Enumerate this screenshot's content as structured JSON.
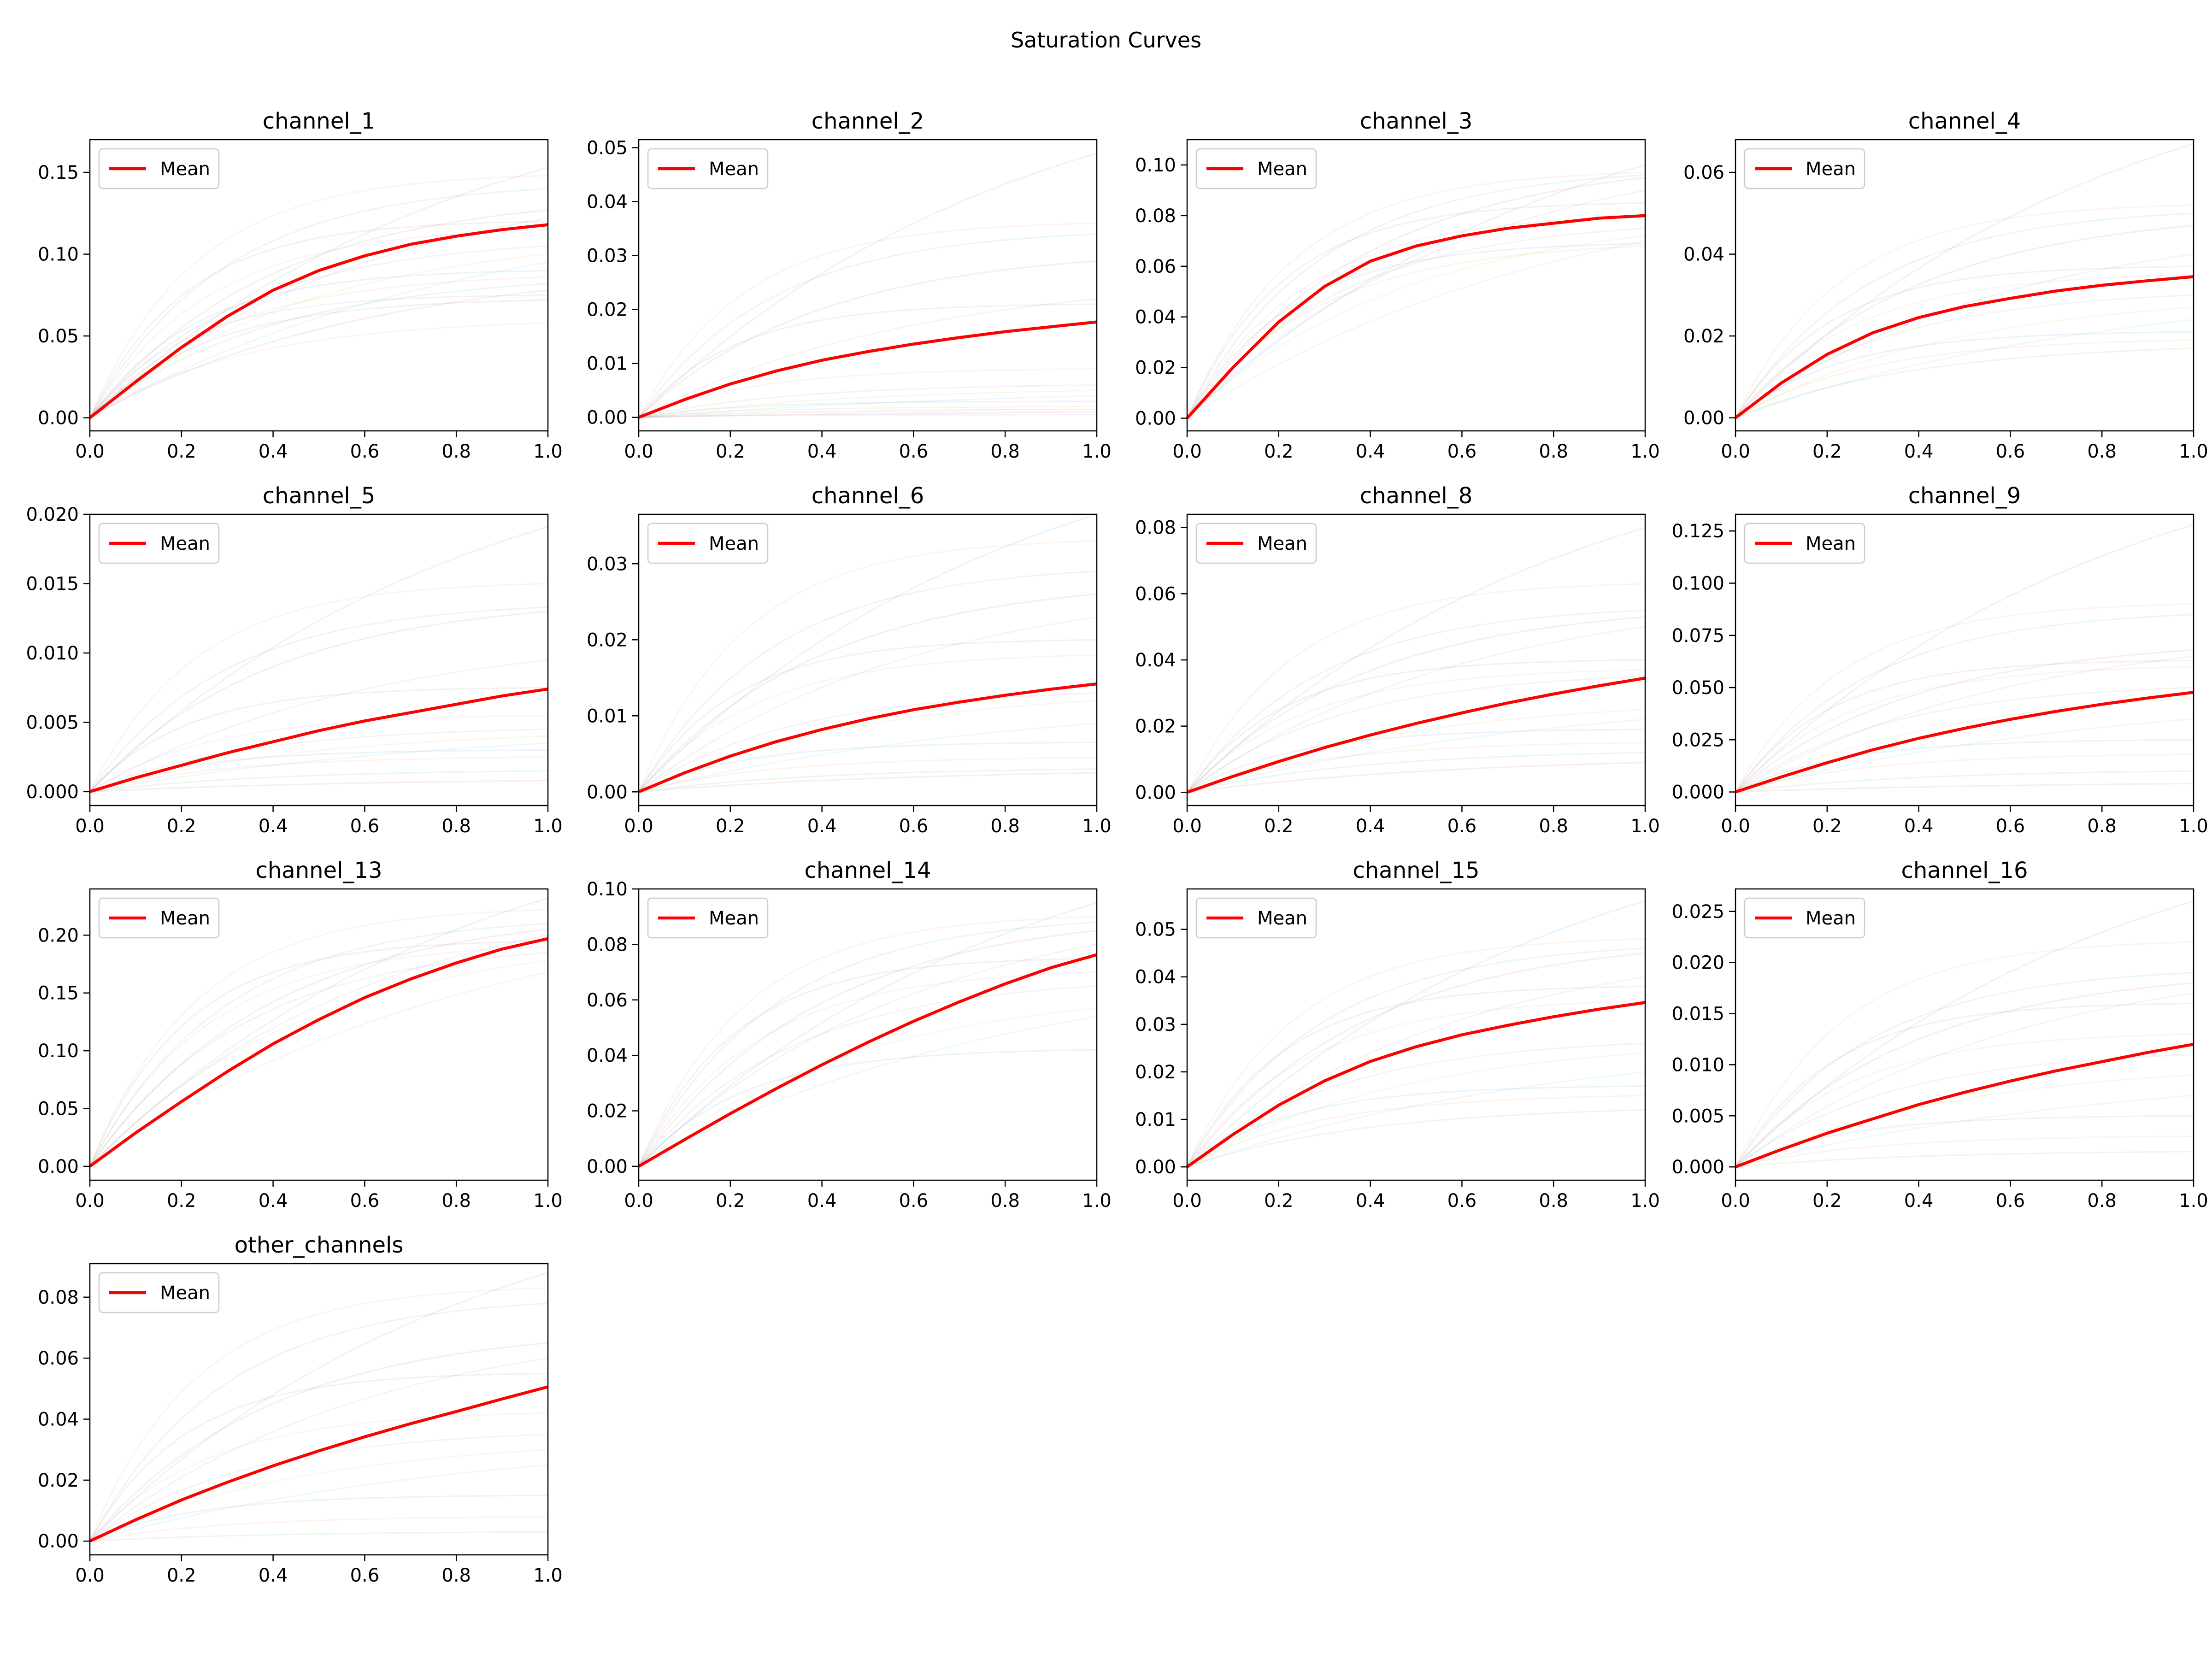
{
  "figure": {
    "title": "Saturation Curves",
    "legend_label": "Mean",
    "mean_color": "#ff0000",
    "sample_palette": [
      "#1f77b4",
      "#ff7f0e",
      "#2ca02c",
      "#d62728",
      "#9467bd",
      "#8c564b",
      "#e377c2",
      "#7f7f7f",
      "#bcbd22",
      "#17becf"
    ]
  },
  "chart_data": [
    {
      "type": "line",
      "title": "channel_1",
      "xlabel": "",
      "ylabel": "",
      "xlim": [
        0,
        1
      ],
      "ylim": [
        -0.008,
        0.17
      ],
      "xticks": [
        0.0,
        0.2,
        0.4,
        0.6,
        0.8,
        1.0
      ],
      "xtick_labels": [
        "0.0",
        "0.2",
        "0.4",
        "0.6",
        "0.8",
        "1.0"
      ],
      "yticks": [
        0,
        0.05,
        0.1,
        0.15
      ],
      "ytick_labels": [
        "0.00",
        "0.05",
        "0.10",
        "0.15"
      ],
      "legend": "top-left",
      "grid": false,
      "mean": {
        "name": "Mean",
        "x": [
          0,
          0.1,
          0.2,
          0.3,
          0.4,
          0.5,
          0.6,
          0.7,
          0.8,
          0.9,
          1.0
        ],
        "y": [
          0,
          0.022,
          0.043,
          0.062,
          0.078,
          0.09,
          0.099,
          0.106,
          0.111,
          0.115,
          0.118
        ]
      },
      "samples": [
        0.153,
        0.148,
        0.14,
        0.127,
        0.122,
        0.12,
        0.115,
        0.105,
        0.1,
        0.095,
        0.09,
        0.086,
        0.082,
        0.078,
        0.075,
        0.072,
        0.058
      ]
    },
    {
      "type": "line",
      "title": "channel_2",
      "xlabel": "",
      "ylabel": "",
      "xlim": [
        0,
        1
      ],
      "ylim": [
        -0.0025,
        0.0515
      ],
      "xticks": [
        0.0,
        0.2,
        0.4,
        0.6,
        0.8,
        1.0
      ],
      "xtick_labels": [
        "0.0",
        "0.2",
        "0.4",
        "0.6",
        "0.8",
        "1.0"
      ],
      "yticks": [
        0,
        0.01,
        0.02,
        0.03,
        0.04,
        0.05
      ],
      "ytick_labels": [
        "0.00",
        "0.01",
        "0.02",
        "0.03",
        "0.04",
        "0.05"
      ],
      "legend": "top-left",
      "grid": false,
      "mean": {
        "name": "Mean",
        "x": [
          0,
          0.1,
          0.2,
          0.3,
          0.4,
          0.5,
          0.6,
          0.7,
          0.8,
          0.9,
          1.0
        ],
        "y": [
          0,
          0.0033,
          0.0062,
          0.0086,
          0.0106,
          0.0122,
          0.0136,
          0.0148,
          0.0159,
          0.0168,
          0.0177
        ]
      },
      "samples": [
        0.049,
        0.036,
        0.034,
        0.029,
        0.022,
        0.021,
        0.009,
        0.006,
        0.005,
        0.004,
        0.003,
        0.002,
        0.0015,
        0.001,
        0.0005
      ]
    },
    {
      "type": "line",
      "title": "channel_3",
      "xlabel": "",
      "ylabel": "",
      "xlim": [
        0,
        1
      ],
      "ylim": [
        -0.005,
        0.11
      ],
      "xticks": [
        0.0,
        0.2,
        0.4,
        0.6,
        0.8,
        1.0
      ],
      "xtick_labels": [
        "0.0",
        "0.2",
        "0.4",
        "0.6",
        "0.8",
        "1.0"
      ],
      "yticks": [
        0,
        0.02,
        0.04,
        0.06,
        0.08,
        0.1
      ],
      "ytick_labels": [
        "0.00",
        "0.02",
        "0.04",
        "0.06",
        "0.08",
        "0.10"
      ],
      "legend": "top-left",
      "grid": false,
      "mean": {
        "name": "Mean",
        "x": [
          0,
          0.1,
          0.2,
          0.3,
          0.4,
          0.5,
          0.6,
          0.7,
          0.8,
          0.9,
          1.0
        ],
        "y": [
          0,
          0.02,
          0.038,
          0.052,
          0.062,
          0.068,
          0.072,
          0.075,
          0.077,
          0.079,
          0.08
        ]
      },
      "samples": [
        0.1,
        0.097,
        0.096,
        0.095,
        0.09,
        0.085,
        0.08,
        0.075,
        0.072,
        0.07,
        0.069,
        0.068
      ]
    },
    {
      "type": "line",
      "title": "channel_4",
      "xlabel": "",
      "ylabel": "",
      "xlim": [
        0,
        1
      ],
      "ylim": [
        -0.0032,
        0.068
      ],
      "xticks": [
        0.0,
        0.2,
        0.4,
        0.6,
        0.8,
        1.0
      ],
      "xtick_labels": [
        "0.0",
        "0.2",
        "0.4",
        "0.6",
        "0.8",
        "1.0"
      ],
      "yticks": [
        0,
        0.02,
        0.04,
        0.06
      ],
      "ytick_labels": [
        "0.00",
        "0.02",
        "0.04",
        "0.06"
      ],
      "legend": "top-left",
      "grid": false,
      "mean": {
        "name": "Mean",
        "x": [
          0,
          0.1,
          0.2,
          0.3,
          0.4,
          0.5,
          0.6,
          0.7,
          0.8,
          0.9,
          1.0
        ],
        "y": [
          0,
          0.0085,
          0.0155,
          0.0208,
          0.0245,
          0.0272,
          0.0292,
          0.031,
          0.0324,
          0.0335,
          0.0345
        ]
      },
      "samples": [
        0.067,
        0.052,
        0.05,
        0.047,
        0.04,
        0.037,
        0.035,
        0.03,
        0.027,
        0.024,
        0.021,
        0.019,
        0.017
      ]
    },
    {
      "type": "line",
      "title": "channel_5",
      "xlabel": "",
      "ylabel": "",
      "xlim": [
        0,
        1
      ],
      "ylim": [
        -0.001,
        0.02
      ],
      "xticks": [
        0.0,
        0.2,
        0.4,
        0.6,
        0.8,
        1.0
      ],
      "xtick_labels": [
        "0.0",
        "0.2",
        "0.4",
        "0.6",
        "0.8",
        "1.0"
      ],
      "yticks": [
        0,
        0.005,
        0.01,
        0.015,
        0.02
      ],
      "ytick_labels": [
        "0.000",
        "0.005",
        "0.010",
        "0.015",
        "0.020"
      ],
      "legend": "top-left",
      "grid": false,
      "mean": {
        "name": "Mean",
        "x": [
          0,
          0.1,
          0.2,
          0.3,
          0.4,
          0.5,
          0.6,
          0.7,
          0.8,
          0.9,
          1.0
        ],
        "y": [
          0,
          0.001,
          0.0019,
          0.0028,
          0.0036,
          0.0044,
          0.0051,
          0.0057,
          0.0063,
          0.0069,
          0.0074
        ]
      },
      "samples": [
        0.0191,
        0.015,
        0.0133,
        0.013,
        0.0095,
        0.0075,
        0.0055,
        0.0045,
        0.004,
        0.0035,
        0.003,
        0.0025,
        0.0015,
        0.0008
      ]
    },
    {
      "type": "line",
      "title": "channel_6",
      "xlabel": "",
      "ylabel": "",
      "xlim": [
        0,
        1
      ],
      "ylim": [
        -0.0018,
        0.0365
      ],
      "xticks": [
        0.0,
        0.2,
        0.4,
        0.6,
        0.8,
        1.0
      ],
      "xtick_labels": [
        "0.0",
        "0.2",
        "0.4",
        "0.6",
        "0.8",
        "1.0"
      ],
      "yticks": [
        0,
        0.01,
        0.02,
        0.03
      ],
      "ytick_labels": [
        "0.00",
        "0.01",
        "0.02",
        "0.03"
      ],
      "legend": "top-left",
      "grid": false,
      "mean": {
        "name": "Mean",
        "x": [
          0,
          0.1,
          0.2,
          0.3,
          0.4,
          0.5,
          0.6,
          0.7,
          0.8,
          0.9,
          1.0
        ],
        "y": [
          0,
          0.0025,
          0.0047,
          0.0066,
          0.0082,
          0.0096,
          0.0108,
          0.0118,
          0.0127,
          0.0135,
          0.0142
        ]
      },
      "samples": [
        0.0365,
        0.033,
        0.029,
        0.026,
        0.023,
        0.02,
        0.018,
        0.013,
        0.012,
        0.009,
        0.0065,
        0.0045,
        0.003,
        0.0025
      ]
    },
    {
      "type": "line",
      "title": "channel_8",
      "xlabel": "",
      "ylabel": "",
      "xlim": [
        0,
        1
      ],
      "ylim": [
        -0.004,
        0.084
      ],
      "xticks": [
        0.0,
        0.2,
        0.4,
        0.6,
        0.8,
        1.0
      ],
      "xtick_labels": [
        "0.0",
        "0.2",
        "0.4",
        "0.6",
        "0.8",
        "1.0"
      ],
      "yticks": [
        0,
        0.02,
        0.04,
        0.06,
        0.08
      ],
      "ytick_labels": [
        "0.00",
        "0.02",
        "0.04",
        "0.06",
        "0.08"
      ],
      "legend": "top-left",
      "grid": false,
      "mean": {
        "name": "Mean",
        "x": [
          0,
          0.1,
          0.2,
          0.3,
          0.4,
          0.5,
          0.6,
          0.7,
          0.8,
          0.9,
          1.0
        ],
        "y": [
          0,
          0.0048,
          0.0093,
          0.0135,
          0.0173,
          0.0208,
          0.024,
          0.027,
          0.0297,
          0.0322,
          0.0345
        ]
      },
      "samples": [
        0.08,
        0.063,
        0.055,
        0.053,
        0.05,
        0.04,
        0.037,
        0.035,
        0.025,
        0.022,
        0.019,
        0.015,
        0.012,
        0.009
      ]
    },
    {
      "type": "line",
      "title": "channel_9",
      "xlabel": "",
      "ylabel": "",
      "xlim": [
        0,
        1
      ],
      "ylim": [
        -0.0065,
        0.133
      ],
      "xticks": [
        0.0,
        0.2,
        0.4,
        0.6,
        0.8,
        1.0
      ],
      "xtick_labels": [
        "0.0",
        "0.2",
        "0.4",
        "0.6",
        "0.8",
        "1.0"
      ],
      "yticks": [
        0,
        0.025,
        0.05,
        0.075,
        0.1,
        0.125
      ],
      "ytick_labels": [
        "0.000",
        "0.025",
        "0.050",
        "0.075",
        "0.100",
        "0.125"
      ],
      "legend": "top-left",
      "grid": false,
      "mean": {
        "name": "Mean",
        "x": [
          0,
          0.1,
          0.2,
          0.3,
          0.4,
          0.5,
          0.6,
          0.7,
          0.8,
          0.9,
          1.0
        ],
        "y": [
          0,
          0.0072,
          0.014,
          0.0202,
          0.0257,
          0.0305,
          0.0348,
          0.0386,
          0.042,
          0.045,
          0.0477
        ]
      },
      "samples": [
        0.128,
        0.09,
        0.085,
        0.068,
        0.065,
        0.063,
        0.06,
        0.05,
        0.045,
        0.035,
        0.025,
        0.018,
        0.01,
        0.004
      ]
    },
    {
      "type": "line",
      "title": "channel_13",
      "xlabel": "",
      "ylabel": "",
      "xlim": [
        0,
        1
      ],
      "ylim": [
        -0.012,
        0.24
      ],
      "xticks": [
        0.0,
        0.2,
        0.4,
        0.6,
        0.8,
        1.0
      ],
      "xtick_labels": [
        "0.0",
        "0.2",
        "0.4",
        "0.6",
        "0.8",
        "1.0"
      ],
      "yticks": [
        0,
        0.05,
        0.1,
        0.15,
        0.2
      ],
      "ytick_labels": [
        "0.00",
        "0.05",
        "0.10",
        "0.15",
        "0.20"
      ],
      "legend": "top-left",
      "grid": false,
      "mean": {
        "name": "Mean",
        "x": [
          0,
          0.1,
          0.2,
          0.3,
          0.4,
          0.5,
          0.6,
          0.7,
          0.8,
          0.9,
          1.0
        ],
        "y": [
          0,
          0.029,
          0.056,
          0.082,
          0.106,
          0.127,
          0.146,
          0.162,
          0.176,
          0.188,
          0.197
        ]
      },
      "samples": [
        0.232,
        0.222,
        0.21,
        0.205,
        0.2,
        0.195,
        0.19,
        0.185,
        0.178,
        0.168
      ]
    },
    {
      "type": "line",
      "title": "channel_14",
      "xlabel": "",
      "ylabel": "",
      "xlim": [
        0,
        1
      ],
      "ylim": [
        -0.005,
        0.1
      ],
      "xticks": [
        0.0,
        0.2,
        0.4,
        0.6,
        0.8,
        1.0
      ],
      "xtick_labels": [
        "0.0",
        "0.2",
        "0.4",
        "0.6",
        "0.8",
        "1.0"
      ],
      "yticks": [
        0,
        0.02,
        0.04,
        0.06,
        0.08,
        0.1
      ],
      "ytick_labels": [
        "0.00",
        "0.02",
        "0.04",
        "0.06",
        "0.08",
        "0.10"
      ],
      "legend": "top-left",
      "grid": false,
      "mean": {
        "name": "Mean",
        "x": [
          0,
          0.1,
          0.2,
          0.3,
          0.4,
          0.5,
          0.6,
          0.7,
          0.8,
          0.9,
          1.0
        ],
        "y": [
          0,
          0.0096,
          0.019,
          0.028,
          0.0366,
          0.0447,
          0.0523,
          0.0593,
          0.0658,
          0.0716,
          0.0763
        ]
      },
      "samples": [
        0.095,
        0.09,
        0.088,
        0.085,
        0.08,
        0.075,
        0.07,
        0.065,
        0.057,
        0.054,
        0.042
      ]
    },
    {
      "type": "line",
      "title": "channel_15",
      "xlabel": "",
      "ylabel": "",
      "xlim": [
        0,
        1
      ],
      "ylim": [
        -0.0028,
        0.0585
      ],
      "xticks": [
        0.0,
        0.2,
        0.4,
        0.6,
        0.8,
        1.0
      ],
      "xtick_labels": [
        "0.0",
        "0.2",
        "0.4",
        "0.6",
        "0.8",
        "1.0"
      ],
      "yticks": [
        0,
        0.01,
        0.02,
        0.03,
        0.04,
        0.05
      ],
      "ytick_labels": [
        "0.00",
        "0.01",
        "0.02",
        "0.03",
        "0.04",
        "0.05"
      ],
      "legend": "top-left",
      "grid": false,
      "mean": {
        "name": "Mean",
        "x": [
          0,
          0.1,
          0.2,
          0.3,
          0.4,
          0.5,
          0.6,
          0.7,
          0.8,
          0.9,
          1.0
        ],
        "y": [
          0,
          0.0068,
          0.013,
          0.0181,
          0.0222,
          0.0253,
          0.0278,
          0.0298,
          0.0316,
          0.0332,
          0.0346
        ]
      },
      "samples": [
        0.056,
        0.048,
        0.046,
        0.045,
        0.04,
        0.038,
        0.035,
        0.026,
        0.024,
        0.02,
        0.017,
        0.015,
        0.012
      ]
    },
    {
      "type": "line",
      "title": "channel_16",
      "xlabel": "",
      "ylabel": "",
      "xlim": [
        0,
        1
      ],
      "ylim": [
        -0.0013,
        0.0272
      ],
      "xticks": [
        0.0,
        0.2,
        0.4,
        0.6,
        0.8,
        1.0
      ],
      "xtick_labels": [
        "0.0",
        "0.2",
        "0.4",
        "0.6",
        "0.8",
        "1.0"
      ],
      "yticks": [
        0,
        0.005,
        0.01,
        0.015,
        0.02,
        0.025
      ],
      "ytick_labels": [
        "0.000",
        "0.005",
        "0.010",
        "0.015",
        "0.020",
        "0.025"
      ],
      "legend": "top-left",
      "grid": false,
      "mean": {
        "name": "Mean",
        "x": [
          0,
          0.1,
          0.2,
          0.3,
          0.4,
          0.5,
          0.6,
          0.7,
          0.8,
          0.9,
          1.0
        ],
        "y": [
          0,
          0.0017,
          0.0033,
          0.0047,
          0.0061,
          0.0073,
          0.0084,
          0.0094,
          0.0103,
          0.0112,
          0.012
        ]
      },
      "samples": [
        0.026,
        0.022,
        0.019,
        0.018,
        0.017,
        0.016,
        0.013,
        0.011,
        0.009,
        0.007,
        0.005,
        0.003,
        0.0015
      ]
    },
    {
      "type": "line",
      "title": "other_channels",
      "xlabel": "",
      "ylabel": "",
      "xlim": [
        0,
        1
      ],
      "ylim": [
        -0.0045,
        0.091
      ],
      "xticks": [
        0.0,
        0.2,
        0.4,
        0.6,
        0.8,
        1.0
      ],
      "xtick_labels": [
        "0.0",
        "0.2",
        "0.4",
        "0.6",
        "0.8",
        "1.0"
      ],
      "yticks": [
        0,
        0.02,
        0.04,
        0.06,
        0.08
      ],
      "ytick_labels": [
        "0.00",
        "0.02",
        "0.04",
        "0.06",
        "0.08"
      ],
      "legend": "top-left",
      "grid": false,
      "mean": {
        "name": "Mean",
        "x": [
          0,
          0.1,
          0.2,
          0.3,
          0.4,
          0.5,
          0.6,
          0.7,
          0.8,
          0.9,
          1.0
        ],
        "y": [
          0,
          0.007,
          0.0135,
          0.0193,
          0.0247,
          0.0296,
          0.0342,
          0.0385,
          0.0425,
          0.0466,
          0.0506
        ]
      },
      "samples": [
        0.088,
        0.083,
        0.078,
        0.065,
        0.06,
        0.055,
        0.042,
        0.035,
        0.03,
        0.025,
        0.015,
        0.008,
        0.003
      ]
    }
  ]
}
